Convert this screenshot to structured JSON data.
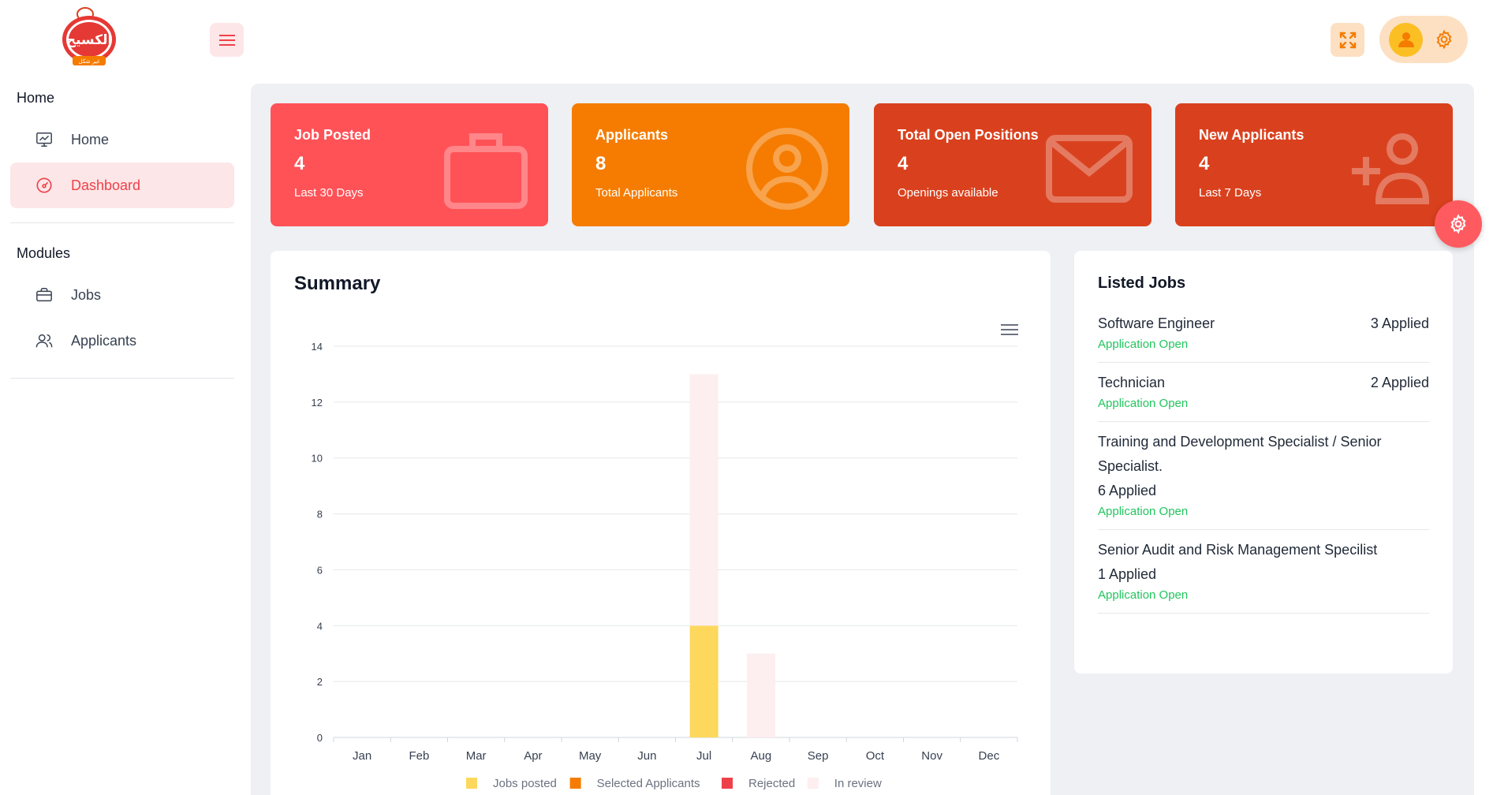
{
  "app": {
    "logo_text": "الكسيح",
    "logo_subtext": "غير شكل"
  },
  "sidebar": {
    "sections": [
      {
        "title": "Home",
        "items": [
          {
            "label": "Home",
            "icon": "monitor-chart-icon",
            "active": false
          },
          {
            "label": "Dashboard",
            "icon": "dashboard-gauge-icon",
            "active": true
          }
        ]
      },
      {
        "title": "Modules",
        "items": [
          {
            "label": "Jobs",
            "icon": "briefcase-icon",
            "active": false
          },
          {
            "label": "Applicants",
            "icon": "users-icon",
            "active": false
          }
        ]
      }
    ]
  },
  "stats": [
    {
      "title": "Job Posted",
      "value": "4",
      "subtitle": "Last 30 Days",
      "icon": "briefcase-icon",
      "color": "#ff5257"
    },
    {
      "title": "Applicants",
      "value": "8",
      "subtitle": "Total Applicants",
      "icon": "user-circle-icon",
      "color": "#f57c00"
    },
    {
      "title": "Total Open Positions",
      "value": "4",
      "subtitle": "Openings available",
      "icon": "envelope-icon",
      "color": "#d9411e"
    },
    {
      "title": "New Applicants",
      "value": "4",
      "subtitle": "Last 7 Days",
      "icon": "user-plus-icon",
      "color": "#d9411e"
    }
  ],
  "summary": {
    "title": "Summary"
  },
  "chart_data": {
    "type": "bar",
    "stacked": true,
    "categories": [
      "Jan",
      "Feb",
      "Mar",
      "Apr",
      "May",
      "Jun",
      "Jul",
      "Aug",
      "Sep",
      "Oct",
      "Nov",
      "Dec"
    ],
    "series": [
      {
        "name": "Jobs posted",
        "color": "#fdd85d",
        "values": [
          0,
          0,
          0,
          0,
          0,
          0,
          4,
          0,
          0,
          0,
          0,
          0
        ]
      },
      {
        "name": "Selected Applicants",
        "color": "#f57c00",
        "values": [
          0,
          0,
          0,
          0,
          0,
          0,
          0,
          0,
          0,
          0,
          0,
          0
        ]
      },
      {
        "name": "Rejected",
        "color": "#ee4048",
        "values": [
          0,
          0,
          0,
          0,
          0,
          0,
          0,
          0,
          0,
          0,
          0,
          0
        ]
      },
      {
        "name": "In review",
        "color": "#fdeef0",
        "values": [
          0,
          0,
          0,
          0,
          0,
          0,
          9,
          3,
          0,
          0,
          0,
          0
        ]
      }
    ],
    "yticks": [
      0,
      2,
      4,
      6,
      8,
      10,
      12,
      14
    ],
    "ylim": [
      0,
      14
    ],
    "grid": true,
    "legend": "bottom"
  },
  "listed_jobs": {
    "title": "Listed Jobs",
    "items": [
      {
        "name": "Software Engineer",
        "applied": "3 Applied",
        "status": "Application Open",
        "inline": true
      },
      {
        "name": "Technician",
        "applied": "2 Applied",
        "status": "Application Open",
        "inline": true
      },
      {
        "name": "Training and Development Specialist / Senior Specialist.",
        "applied": "6 Applied",
        "status": "Application Open",
        "inline": false
      },
      {
        "name": "Senior Audit and Risk Management Specilist",
        "applied": "1 Applied",
        "status": "Application Open",
        "inline": false
      }
    ]
  }
}
